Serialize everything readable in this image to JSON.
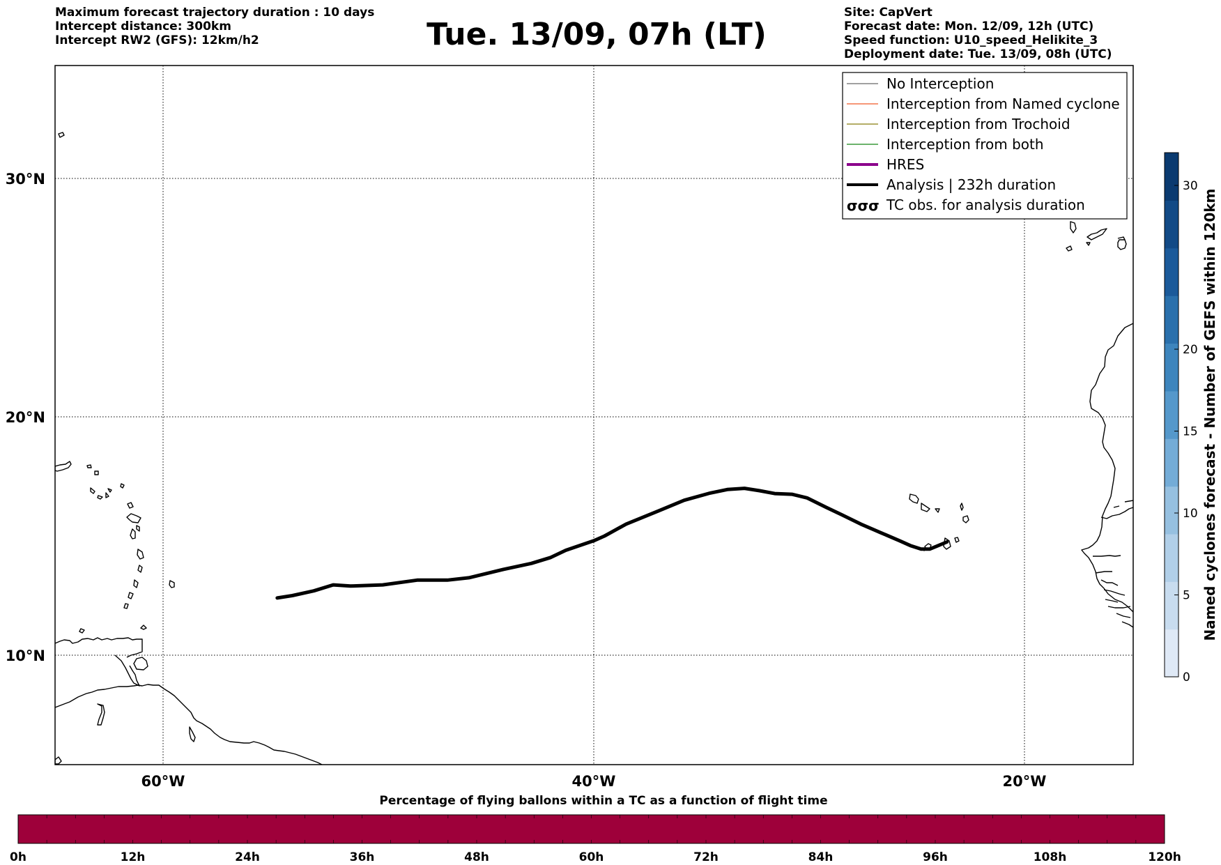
{
  "header": {
    "left_lines": [
      "Maximum forecast trajectory duration : 10 days",
      "Intercept distance: 300km",
      "Intercept RW2 (GFS):  12km/h2"
    ],
    "title": "Tue. 13/09, 07h (LT)",
    "right_lines": [
      "Site: CapVert",
      "Forecast date: Mon. 12/09, 12h (UTC)",
      "Speed function: U10_speed_Helikite_3",
      "Deployment date: Tue. 13/09, 08h (UTC)"
    ]
  },
  "map": {
    "lon_range": [
      -65,
      -15
    ],
    "lat_range": [
      5.3,
      34.5
    ],
    "lat_ticks": [
      {
        "value": 30,
        "label": "30°N"
      },
      {
        "value": 20,
        "label": "20°N"
      },
      {
        "value": 10,
        "label": "10°N"
      }
    ],
    "lon_ticks": [
      {
        "value": -60,
        "label": "60°W"
      },
      {
        "value": -40,
        "label": "40°W"
      },
      {
        "value": -20,
        "label": "20°W"
      }
    ],
    "grid": "dotted",
    "analysis_track": [
      [
        -54.7,
        12.4
      ],
      [
        -54.0,
        12.5
      ],
      [
        -53.0,
        12.7
      ],
      [
        -52.1,
        12.95
      ],
      [
        -51.3,
        12.9
      ],
      [
        -49.8,
        12.95
      ],
      [
        -48.2,
        13.15
      ],
      [
        -46.8,
        13.15
      ],
      [
        -45.8,
        13.25
      ],
      [
        -44.2,
        13.6
      ],
      [
        -42.9,
        13.85
      ],
      [
        -42.0,
        14.1
      ],
      [
        -41.3,
        14.4
      ],
      [
        -40.0,
        14.8
      ],
      [
        -39.5,
        15.0
      ],
      [
        -38.5,
        15.5
      ],
      [
        -37.0,
        16.05
      ],
      [
        -35.8,
        16.5
      ],
      [
        -34.6,
        16.8
      ],
      [
        -33.8,
        16.95
      ],
      [
        -33.0,
        17.0
      ],
      [
        -32.3,
        16.9
      ],
      [
        -31.6,
        16.78
      ],
      [
        -30.8,
        16.75
      ],
      [
        -30.1,
        16.6
      ],
      [
        -29.2,
        16.2
      ],
      [
        -28.5,
        15.9
      ],
      [
        -27.6,
        15.5
      ],
      [
        -26.7,
        15.15
      ],
      [
        -25.8,
        14.8
      ],
      [
        -25.3,
        14.6
      ],
      [
        -24.8,
        14.45
      ],
      [
        -24.4,
        14.45
      ],
      [
        -24.0,
        14.6
      ],
      [
        -23.6,
        14.75
      ]
    ]
  },
  "legend": {
    "placement": "top-right",
    "items": [
      {
        "label": "No Interception",
        "color": "#808080",
        "style": "thin"
      },
      {
        "label": "Interception from Named cyclone",
        "color": "#f4754a",
        "style": "thin"
      },
      {
        "label": "Interception from Trochoid",
        "color": "#9b9235",
        "style": "thin"
      },
      {
        "label": "Interception from both",
        "color": "#3a9a3a",
        "style": "thin"
      },
      {
        "label": "HRES",
        "color": "#8b008b",
        "style": "thick"
      },
      {
        "label": "Analysis | 232h duration",
        "color": "#000000",
        "style": "thick"
      },
      {
        "label": "TC obs. for analysis duration",
        "color": "#000000",
        "style": "cyclone-symbols",
        "symbol_text": "σσσ"
      }
    ]
  },
  "colorbar_right": {
    "title": "Named cyclones forecast - Number of GEFS within 120km",
    "ticks": [
      0,
      5,
      10,
      15,
      20,
      30
    ],
    "range": [
      0,
      32
    ],
    "colors": [
      "#dfe9f6",
      "#c8dcef",
      "#b1cfe8",
      "#96c0e0",
      "#74acd7",
      "#5598cb",
      "#3d85bd",
      "#2a70ac",
      "#1b5a9a",
      "#124a86",
      "#0a3a70"
    ]
  },
  "colorbar_bottom": {
    "title": "Percentage of flying ballons within a TC as a function of flight time",
    "ticks": [
      "0h",
      "12h",
      "24h",
      "36h",
      "48h",
      "60h",
      "72h",
      "84h",
      "96h",
      "108h",
      "120h"
    ],
    "fill_color": "#9e003a"
  }
}
